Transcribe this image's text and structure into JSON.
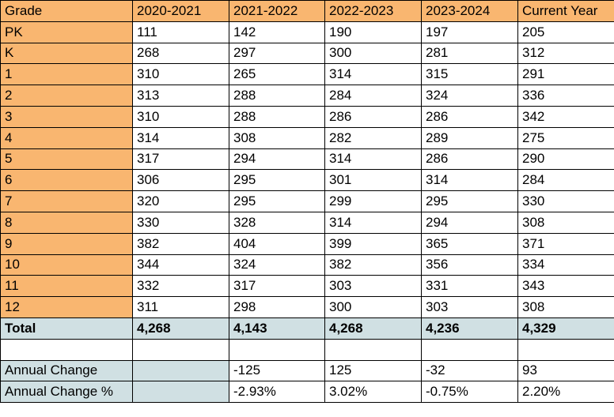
{
  "table": {
    "header": [
      "Grade",
      "2020-2021",
      "2021-2022",
      "2022-2023",
      "2023-2024",
      "Current Year"
    ],
    "rows": [
      [
        "PK",
        "111",
        "142",
        "190",
        "197",
        "205"
      ],
      [
        "K",
        "268",
        "297",
        "300",
        "281",
        "312"
      ],
      [
        "1",
        "310",
        "265",
        "314",
        "315",
        "291"
      ],
      [
        "2",
        "313",
        "288",
        "284",
        "324",
        "336"
      ],
      [
        "3",
        "310",
        "288",
        "286",
        "286",
        "342"
      ],
      [
        "4",
        "314",
        "308",
        "282",
        "289",
        "275"
      ],
      [
        "5",
        "317",
        "294",
        "314",
        "286",
        "290"
      ],
      [
        "6",
        "306",
        "295",
        "301",
        "314",
        "284"
      ],
      [
        "7",
        "320",
        "295",
        "299",
        "295",
        "330"
      ],
      [
        "8",
        "330",
        "328",
        "314",
        "294",
        "308"
      ],
      [
        "9",
        "382",
        "404",
        "399",
        "365",
        "371"
      ],
      [
        "10",
        "344",
        "324",
        "382",
        "356",
        "334"
      ],
      [
        "11",
        "332",
        "317",
        "303",
        "331",
        "343"
      ],
      [
        "12",
        "311",
        "298",
        "300",
        "303",
        "308"
      ]
    ],
    "total": [
      "Total",
      "4,268",
      "4,143",
      "4,268",
      "4,236",
      "4,329"
    ],
    "annual_change": {
      "label": "Annual Change",
      "values": [
        "-125",
        "125",
        "-32",
        "93"
      ]
    },
    "annual_change_pct": {
      "label": "Annual Change %",
      "values": [
        "-2.93%",
        "3.02%",
        "-0.75%",
        "2.20%"
      ]
    }
  }
}
